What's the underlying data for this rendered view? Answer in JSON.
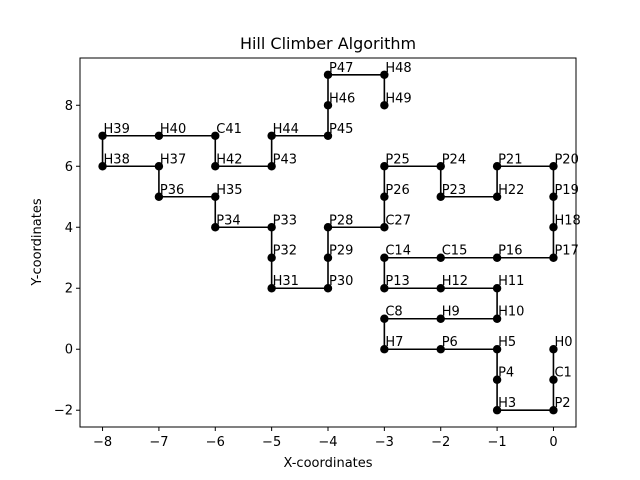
{
  "chart_data": {
    "type": "line",
    "title": "Hill Climber Algorithm",
    "xlabel": "X-coordinates",
    "ylabel": "Y-coordinates",
    "xlim": [
      -8.4,
      0.4
    ],
    "ylim": [
      -2.55,
      9.55
    ],
    "xticks": [
      -8,
      -7,
      -6,
      -5,
      -4,
      -3,
      -2,
      -1,
      0
    ],
    "yticks": [
      -2,
      0,
      2,
      4,
      6,
      8
    ],
    "xtick_labels": [
      "−8",
      "−7",
      "−6",
      "−5",
      "−4",
      "−3",
      "−2",
      "−1",
      "0"
    ],
    "ytick_labels": [
      "−2",
      "0",
      "2",
      "4",
      "6",
      "8"
    ],
    "grid": false,
    "color": "#000000",
    "series": [
      {
        "points": [
          {
            "label": "H0",
            "x": 0,
            "y": 0
          },
          {
            "label": "C1",
            "x": 0,
            "y": -1
          },
          {
            "label": "P2",
            "x": 0,
            "y": -2
          },
          {
            "label": "H3",
            "x": -1,
            "y": -2
          },
          {
            "label": "P4",
            "x": -1,
            "y": -1
          },
          {
            "label": "H5",
            "x": -1,
            "y": 0
          },
          {
            "label": "P6",
            "x": -2,
            "y": 0
          },
          {
            "label": "H7",
            "x": -3,
            "y": 0
          },
          {
            "label": "C8",
            "x": -3,
            "y": 1
          },
          {
            "label": "H9",
            "x": -2,
            "y": 1
          },
          {
            "label": "H10",
            "x": -1,
            "y": 1
          },
          {
            "label": "H11",
            "x": -1,
            "y": 2
          },
          {
            "label": "H12",
            "x": -2,
            "y": 2
          },
          {
            "label": "P13",
            "x": -3,
            "y": 2
          },
          {
            "label": "C14",
            "x": -3,
            "y": 3
          },
          {
            "label": "C15",
            "x": -2,
            "y": 3
          },
          {
            "label": "P16",
            "x": -1,
            "y": 3
          },
          {
            "label": "P17",
            "x": 0,
            "y": 3
          },
          {
            "label": "H18",
            "x": 0,
            "y": 4
          },
          {
            "label": "P19",
            "x": 0,
            "y": 5
          },
          {
            "label": "P20",
            "x": 0,
            "y": 6
          },
          {
            "label": "P21",
            "x": -1,
            "y": 6
          },
          {
            "label": "H22",
            "x": -1,
            "y": 5
          },
          {
            "label": "P23",
            "x": -2,
            "y": 5
          },
          {
            "label": "P24",
            "x": -2,
            "y": 6
          },
          {
            "label": "P25",
            "x": -3,
            "y": 6
          },
          {
            "label": "P26",
            "x": -3,
            "y": 5
          },
          {
            "label": "C27",
            "x": -3,
            "y": 4
          },
          {
            "label": "P28",
            "x": -4,
            "y": 4
          },
          {
            "label": "P29",
            "x": -4,
            "y": 3
          },
          {
            "label": "P30",
            "x": -4,
            "y": 2
          },
          {
            "label": "H31",
            "x": -5,
            "y": 2
          },
          {
            "label": "P32",
            "x": -5,
            "y": 3
          },
          {
            "label": "P33",
            "x": -5,
            "y": 4
          },
          {
            "label": "P34",
            "x": -6,
            "y": 4
          },
          {
            "label": "H35",
            "x": -6,
            "y": 5
          },
          {
            "label": "P36",
            "x": -7,
            "y": 5
          },
          {
            "label": "H37",
            "x": -7,
            "y": 6
          },
          {
            "label": "H38",
            "x": -8,
            "y": 6
          },
          {
            "label": "H39",
            "x": -8,
            "y": 7
          },
          {
            "label": "H40",
            "x": -7,
            "y": 7
          },
          {
            "label": "C41",
            "x": -6,
            "y": 7
          },
          {
            "label": "H42",
            "x": -6,
            "y": 6
          },
          {
            "label": "P43",
            "x": -5,
            "y": 6
          },
          {
            "label": "H44",
            "x": -5,
            "y": 7
          },
          {
            "label": "P45",
            "x": -4,
            "y": 7
          },
          {
            "label": "H46",
            "x": -4,
            "y": 8
          },
          {
            "label": "P47",
            "x": -4,
            "y": 9
          },
          {
            "label": "H48",
            "x": -3,
            "y": 9
          },
          {
            "label": "H49",
            "x": -3,
            "y": 8
          }
        ]
      }
    ]
  }
}
